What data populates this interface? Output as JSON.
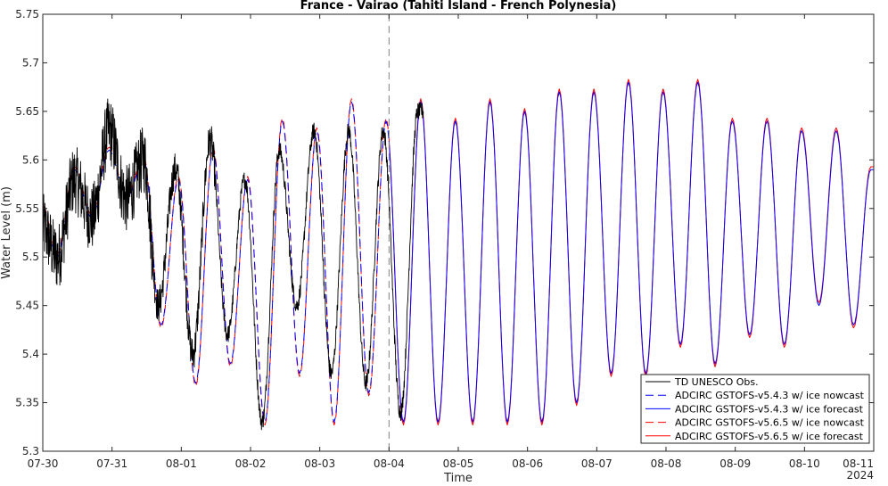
{
  "chart_data": {
    "type": "line",
    "title": "France - Vairao (Tahiti Island - French Polynesia)",
    "xlabel": "Time",
    "ylabel": "Water Level (m)",
    "year_label": "2024",
    "x_ticks": [
      "07-30",
      "07-31",
      "08-01",
      "08-02",
      "08-03",
      "08-04",
      "08-05",
      "08-06",
      "08-07",
      "08-08",
      "08-09",
      "08-10",
      "08-11"
    ],
    "xlim": [
      "2024-07-30",
      "2024-08-11"
    ],
    "y_ticks": [
      "5.3",
      "5.35",
      "5.4",
      "5.45",
      "5.5",
      "5.55",
      "5.6",
      "5.65",
      "5.7",
      "5.75"
    ],
    "ylim": [
      5.3,
      5.75
    ],
    "grid": false,
    "forecast_start": "2024-08-04",
    "legend_position": "bottom-right",
    "series": [
      {
        "name": "TD UNESCO Obs.",
        "color": "#000000",
        "style": "solid",
        "range": [
          "2024-07-30",
          "2024-08-04 12:00"
        ],
        "extrema": [
          [
            "07-30 00:00",
            5.53
          ],
          [
            "07-30 05:00",
            5.5
          ],
          [
            "07-30 11:00",
            5.58
          ],
          [
            "07-30 17:00",
            5.54
          ],
          [
            "07-30 23:00",
            5.63
          ],
          [
            "07-31 05:00",
            5.56
          ],
          [
            "07-31 11:00",
            5.6
          ],
          [
            "07-31 16:00",
            5.45
          ],
          [
            "07-31 22:00",
            5.59
          ],
          [
            "08-01 04:00",
            5.4
          ],
          [
            "08-01 10:00",
            5.62
          ],
          [
            "08-01 16:00",
            5.42
          ],
          [
            "08-01 22:00",
            5.58
          ],
          [
            "08-02 04:00",
            5.33
          ],
          [
            "08-02 10:00",
            5.61
          ],
          [
            "08-02 16:00",
            5.45
          ],
          [
            "08-02 22:00",
            5.63
          ],
          [
            "08-03 04:00",
            5.38
          ],
          [
            "08-03 10:00",
            5.63
          ],
          [
            "08-03 16:00",
            5.37
          ],
          [
            "08-03 22:00",
            5.63
          ],
          [
            "08-04 04:00",
            5.34
          ],
          [
            "08-04 10:00",
            5.65
          ]
        ]
      },
      {
        "name": "ADCIRC GSTOFS-v5.4.3 w/ ice nowcast",
        "color": "#0000ff",
        "style": "dashed",
        "range": [
          "2024-07-30",
          "2024-08-04"
        ]
      },
      {
        "name": "ADCIRC GSTOFS-v5.4.3 w/ ice forecast",
        "color": "#0000ff",
        "style": "solid",
        "range": [
          "2024-08-04",
          "2024-08-11"
        ]
      },
      {
        "name": "ADCIRC GSTOFS-v5.6.5 w/ ice nowcast",
        "color": "#ff0000",
        "style": "dashed",
        "range": [
          "2024-07-30",
          "2024-08-04"
        ]
      },
      {
        "name": "ADCIRC GSTOFS-v5.6.5 w/ ice forecast",
        "color": "#ff0000",
        "style": "solid",
        "range": [
          "2024-08-04",
          "2024-08-11"
        ]
      }
    ],
    "model_extrema": [
      [
        "07-30 00:00",
        5.55
      ],
      [
        "07-30 05:00",
        5.5
      ],
      [
        "07-30 11:00",
        5.59
      ],
      [
        "07-30 17:00",
        5.54
      ],
      [
        "07-30 23:00",
        5.61
      ],
      [
        "07-31 05:00",
        5.56
      ],
      [
        "07-31 11:00",
        5.6
      ],
      [
        "07-31 17:00",
        5.43
      ],
      [
        "07-31 23:00",
        5.58
      ],
      [
        "08-01 05:00",
        5.37
      ],
      [
        "08-01 11:00",
        5.61
      ],
      [
        "08-01 17:00",
        5.39
      ],
      [
        "08-01 23:00",
        5.58
      ],
      [
        "08-02 05:00",
        5.33
      ],
      [
        "08-02 11:00",
        5.64
      ],
      [
        "08-02 17:00",
        5.38
      ],
      [
        "08-02 23:00",
        5.63
      ],
      [
        "08-03 05:00",
        5.33
      ],
      [
        "08-03 11:00",
        5.66
      ],
      [
        "08-03 17:00",
        5.36
      ],
      [
        "08-03 23:00",
        5.64
      ],
      [
        "08-04 05:00",
        5.33
      ],
      [
        "08-04 11:00",
        5.66
      ],
      [
        "08-04 17:00",
        5.33
      ],
      [
        "08-04 23:00",
        5.64
      ],
      [
        "08-05 05:00",
        5.33
      ],
      [
        "08-05 11:00",
        5.66
      ],
      [
        "08-05 17:00",
        5.33
      ],
      [
        "08-05 23:00",
        5.65
      ],
      [
        "08-06 05:00",
        5.33
      ],
      [
        "08-06 11:00",
        5.67
      ],
      [
        "08-06 17:00",
        5.35
      ],
      [
        "08-06 23:00",
        5.67
      ],
      [
        "08-07 05:00",
        5.38
      ],
      [
        "08-07 11:00",
        5.68
      ],
      [
        "08-07 17:00",
        5.38
      ],
      [
        "08-07 23:00",
        5.67
      ],
      [
        "08-08 05:00",
        5.41
      ],
      [
        "08-08 11:00",
        5.68
      ],
      [
        "08-08 17:00",
        5.39
      ],
      [
        "08-08 23:00",
        5.64
      ],
      [
        "08-09 05:00",
        5.42
      ],
      [
        "08-09 11:00",
        5.64
      ],
      [
        "08-09 17:00",
        5.41
      ],
      [
        "08-09 23:00",
        5.63
      ],
      [
        "08-10 05:00",
        5.45
      ],
      [
        "08-10 11:00",
        5.63
      ],
      [
        "08-10 17:00",
        5.43
      ],
      [
        "08-10 23:00",
        5.59
      ],
      [
        "08-11 00:00",
        5.59
      ]
    ]
  }
}
